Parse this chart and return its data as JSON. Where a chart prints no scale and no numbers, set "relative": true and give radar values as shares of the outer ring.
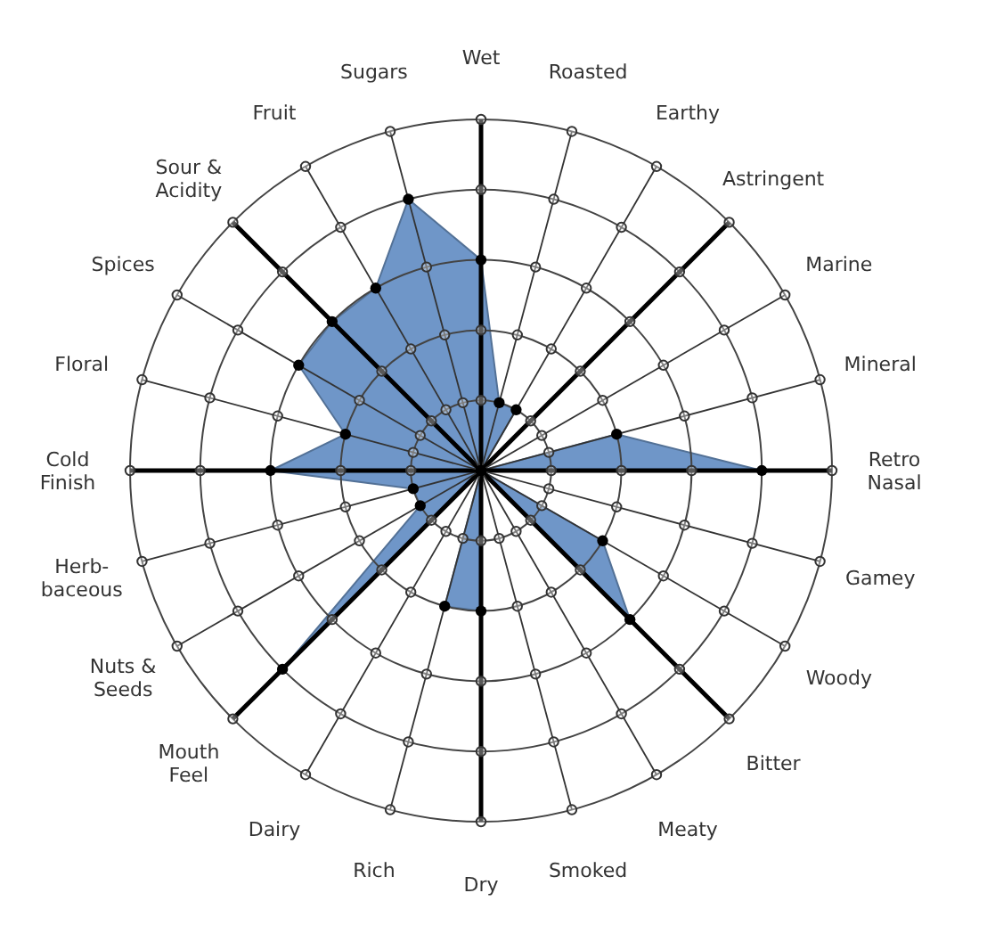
{
  "chart_data": {
    "type": "radar",
    "relative": true,
    "grid": true,
    "marker": "circle",
    "categories": [
      "Wet",
      "Roasted",
      "Earthy",
      "Astringent",
      "Marine",
      "Mineral",
      "Retro Nasal",
      "Gamey",
      "Woody",
      "Bitter",
      "Meaty",
      "Smoked",
      "Dry",
      "Rich",
      "Dairy",
      "Mouth Feel",
      "Nuts & Seeds",
      "Herb-baceous",
      "Cold Finish",
      "Floral",
      "Spices",
      "Sour & Acidity",
      "Fruit",
      "Sugars"
    ],
    "series": [
      {
        "color": "#6f96c8",
        "values": [
          0.6,
          0.2,
          0.2,
          0,
          0,
          0.4,
          0.8,
          0,
          0.4,
          0.6,
          0,
          0,
          0.4,
          0.4,
          0,
          0.8,
          0.2,
          0.2,
          0.6,
          0.4,
          0.6,
          0.6,
          0.6,
          0.8
        ]
      }
    ]
  }
}
